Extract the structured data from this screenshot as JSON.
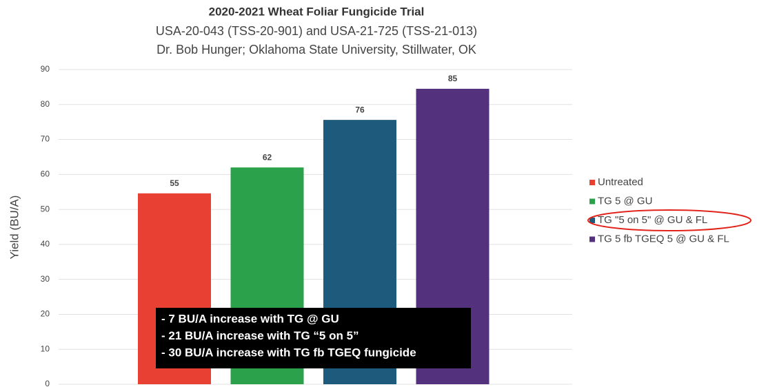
{
  "chart_data": {
    "type": "bar",
    "title": "2020-2021 Wheat Foliar Fungicide Trial",
    "subtitle": [
      "USA-20-043 (TSS-20-901) and USA-21-725 (TSS-21-013)",
      "Dr. Bob Hunger; Oklahoma State University, Stillwater, OK"
    ],
    "y_label": "Yield (BU/A)",
    "series": [
      {
        "name": "Untreated",
        "color": "#e84133",
        "values": [
          54.6
        ],
        "value_labels": [
          "55"
        ]
      },
      {
        "name": "TG 5 @ GU",
        "color": "#2ca14b",
        "values": [
          62
        ],
        "value_labels": [
          "62"
        ]
      },
      {
        "name": "TG \"5 on 5\" @ GU & FL",
        "color": "#1d5a7c",
        "values": [
          75.6
        ],
        "value_labels": [
          "76"
        ]
      },
      {
        "name": "TG 5 fb TGEQ 5 @ GU & FL",
        "color": "#54317d",
        "values": [
          84.5
        ],
        "value_labels": [
          "85"
        ]
      }
    ],
    "ylim": [
      0,
      90
    ],
    "yticks": [
      0,
      10,
      20,
      30,
      40,
      50,
      60,
      70,
      80,
      90
    ],
    "grid": true,
    "legend": "right",
    "annotation": [
      "- 7 BU/A increase with TG @ GU",
      "- 21 BU/A increase with TG “5 on 5”",
      "- 30 BU/A increase with TG fb TGEQ fungicide"
    ]
  }
}
